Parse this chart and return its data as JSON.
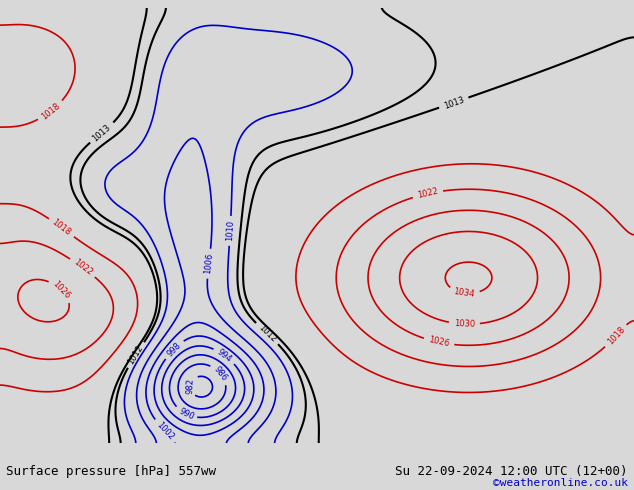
{
  "title_left": "Surface pressure [hPa] 557ww",
  "title_right": "Su 22-09-2024 12:00 UTC (12+00)",
  "title_right2": "©weatheronline.co.uk",
  "bg_color": "#d8d8d8",
  "land_color": "#b8e0a0",
  "ocean_color": "#d0d8e8",
  "bottom_bar_color": "#e0e0e0",
  "contour_blue_color": "#0000cc",
  "contour_red_color": "#cc0000",
  "contour_black_color": "#000000",
  "label_fontsize": 7,
  "title_fontsize": 9,
  "copyright_color": "#0000cc"
}
